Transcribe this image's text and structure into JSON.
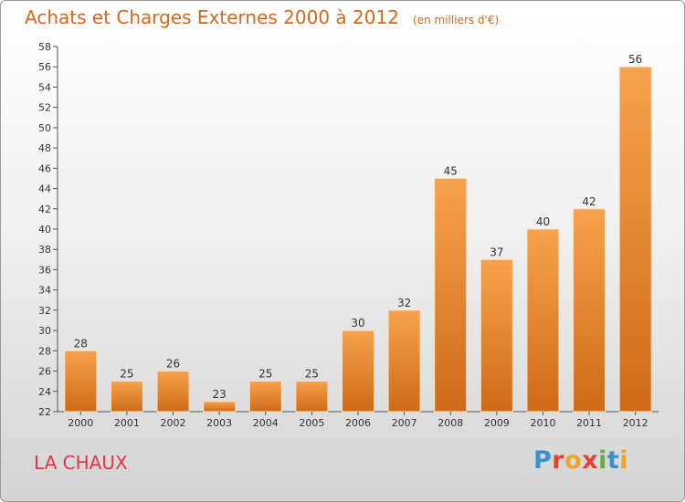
{
  "header": {
    "title": "Achats et Charges Externes 2000 à 2012",
    "subtitle": "(en milliers d'€)"
  },
  "footer": {
    "commune": "LA CHAUX",
    "logo_text": "Proxiti",
    "logo_colors": [
      "#3a8fd0",
      "#e8432e",
      "#f0a424",
      "#e8432e",
      "#58b33a",
      "#3a8fd0",
      "#f0a424"
    ]
  },
  "colors": {
    "bar_light": "#f7a24e",
    "bar_dark": "#cf6a17",
    "title": "#d2691e",
    "commune": "#e0364b"
  },
  "chart_data": {
    "type": "bar",
    "title": "Achats et Charges Externes 2000 à 2012",
    "subtitle": "(en milliers d'€)",
    "categories": [
      "2000",
      "2001",
      "2002",
      "2003",
      "2004",
      "2005",
      "2006",
      "2007",
      "2008",
      "2009",
      "2010",
      "2011",
      "2012"
    ],
    "values": [
      28,
      25,
      26,
      23,
      25,
      25,
      30,
      32,
      45,
      37,
      40,
      42,
      56
    ],
    "ylim": [
      22,
      58
    ],
    "ytick_step": 2,
    "grid": false,
    "data_labels": true
  }
}
